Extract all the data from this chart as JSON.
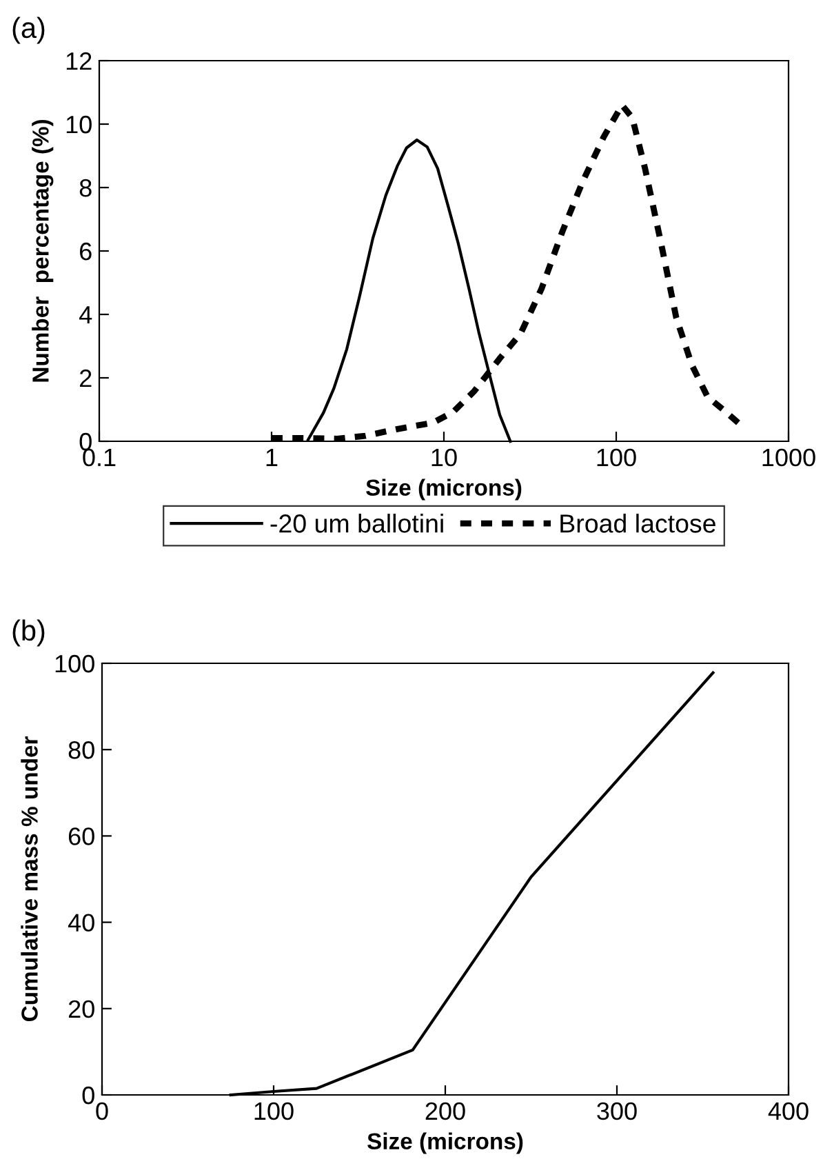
{
  "chart_data": [
    {
      "type": "line",
      "annotations": [
        "(a)"
      ],
      "xlabel": "Size (microns)",
      "ylabel": "Number  percentage (%)",
      "log": "x",
      "xlim": [
        0.1,
        1000
      ],
      "xticks": [
        0.1,
        1,
        10,
        100,
        1000
      ],
      "ylim": [
        0,
        12
      ],
      "yticks": [
        0,
        2,
        4,
        6,
        8,
        10,
        12
      ],
      "grid": false,
      "legend": "bottom",
      "series": [
        {
          "name": "-20 um ballotini",
          "color": "#000000",
          "line_style": "solid",
          "x": [
            1.63,
            2.0,
            2.3,
            2.73,
            3.25,
            3.87,
            4.6,
            5.36,
            6.07,
            6.97,
            8.0,
            9.2,
            10.6,
            12.1,
            14.0,
            16.0,
            18.4,
            21.1,
            24.3
          ],
          "values": [
            0.05,
            0.9,
            1.67,
            2.9,
            4.6,
            6.4,
            7.75,
            8.67,
            9.25,
            9.5,
            9.28,
            8.6,
            7.4,
            6.25,
            4.8,
            3.4,
            2.1,
            0.83,
            0
          ]
        },
        {
          "name": "Broad lactose",
          "color": "#000000",
          "line_style": "dashed",
          "x": [
            1.0,
            1.5,
            2.4,
            3.5,
            5.3,
            8.6,
            11.3,
            15,
            21,
            27.9,
            36.8,
            48.6,
            64,
            84.7,
            108,
            124,
            147,
            182,
            223,
            275,
            339,
            417,
            532
          ],
          "values": [
            0.1,
            0.1,
            0.08,
            0.17,
            0.38,
            0.58,
            0.92,
            1.58,
            2.6,
            3.4,
            4.8,
            6.6,
            8.2,
            9.6,
            10.6,
            10.2,
            8.6,
            6.25,
            3.9,
            2.4,
            1.4,
            1.0,
            0.5
          ]
        }
      ]
    },
    {
      "type": "line",
      "annotations": [
        "(b)"
      ],
      "xlabel": "Size (microns)",
      "ylabel": "Cumulative mass % under",
      "xlim": [
        0,
        400
      ],
      "xticks": [
        0,
        100,
        200,
        300,
        400
      ],
      "ylim": [
        0,
        100
      ],
      "yticks": [
        0,
        20,
        40,
        60,
        80,
        100
      ],
      "grid": false,
      "legend": false,
      "series": [
        {
          "color": "#000000",
          "line_style": "solid",
          "x": [
            75,
            100,
            125,
            181,
            250,
            356
          ],
          "values": [
            0,
            0.8,
            1.5,
            10.4,
            50.5,
            97.8
          ]
        }
      ]
    }
  ]
}
